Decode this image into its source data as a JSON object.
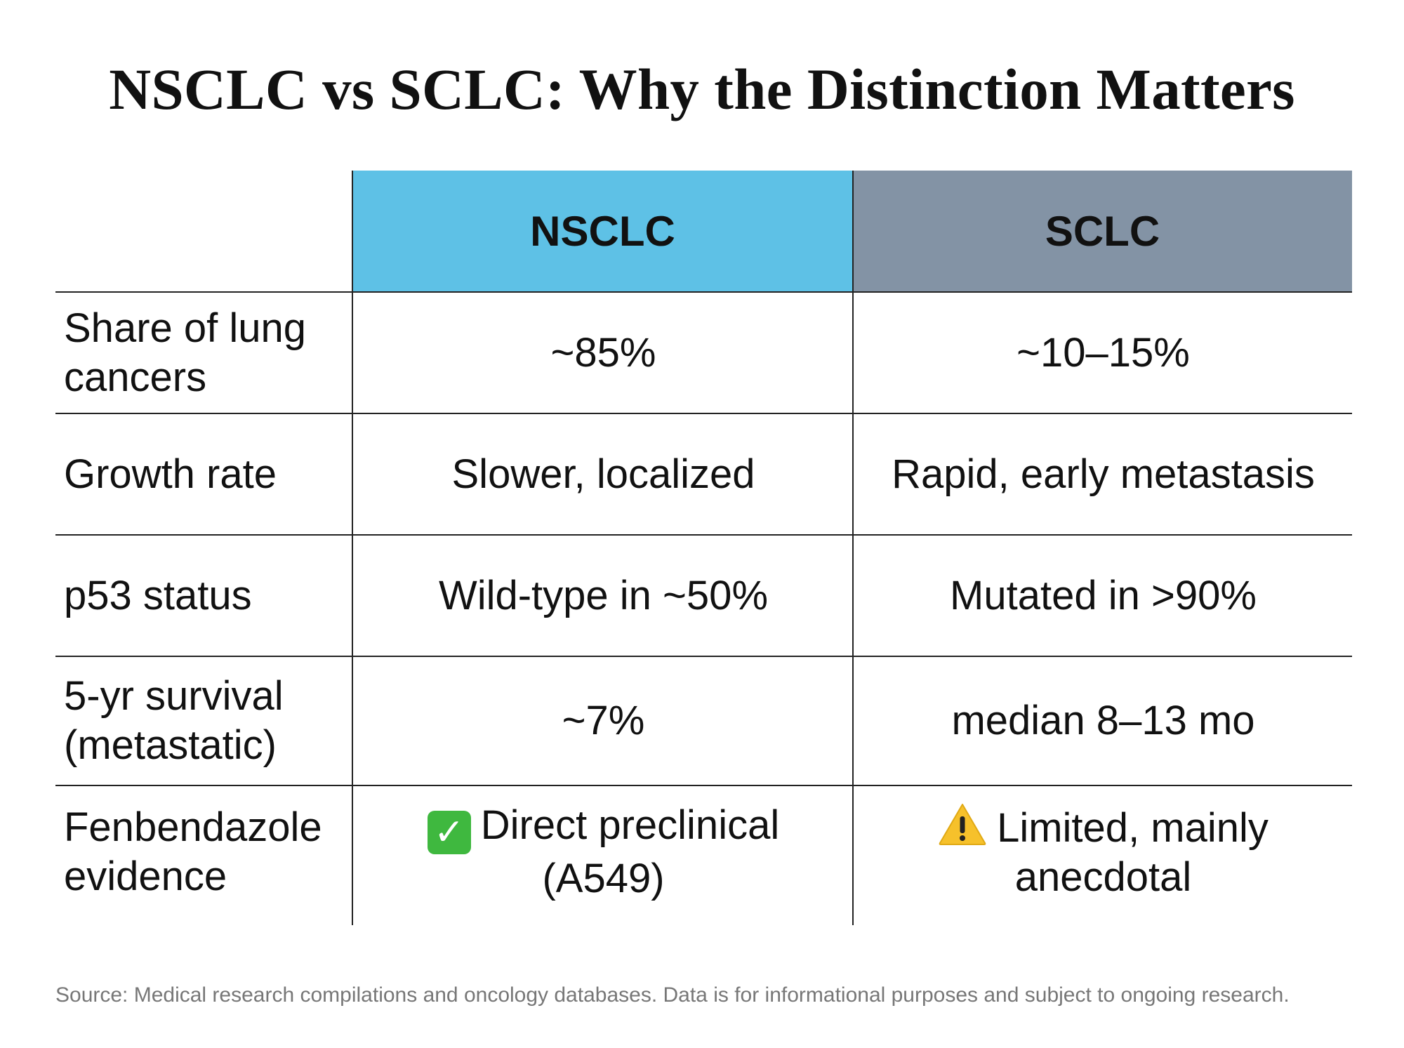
{
  "title": "NSCLC vs SCLC: Why the Distinction Matters",
  "table": {
    "header": {
      "corner": "",
      "nsclc": "NSCLC",
      "sclc": "SCLC"
    },
    "colors": {
      "nsclc_header": "#5ec1e6",
      "sclc_header": "#8393a5"
    },
    "rows": [
      {
        "label": "Share of lung cancers",
        "nsclc": "~85%",
        "sclc": "~10–15%"
      },
      {
        "label": "Growth rate",
        "nsclc": "Slower, localized",
        "sclc": "Rapid, early metastasis"
      },
      {
        "label": "p53 status",
        "nsclc": "Wild-type in ~50%",
        "sclc": "Mutated in >90%"
      },
      {
        "label": "5-yr survival (metastatic)",
        "nsclc": "~7%",
        "sclc": "median 8–13 mo"
      },
      {
        "label": "Fenbendazole evidence",
        "nsclc": "Direct preclinical (A549)",
        "nsclc_icon": "check-mark-icon",
        "sclc": "Limited, mainly anecdotal",
        "sclc_icon": "warning-icon"
      }
    ]
  },
  "source": "Source: Medical research compilations and oncology databases. Data is for informational purposes and subject to ongoing research."
}
